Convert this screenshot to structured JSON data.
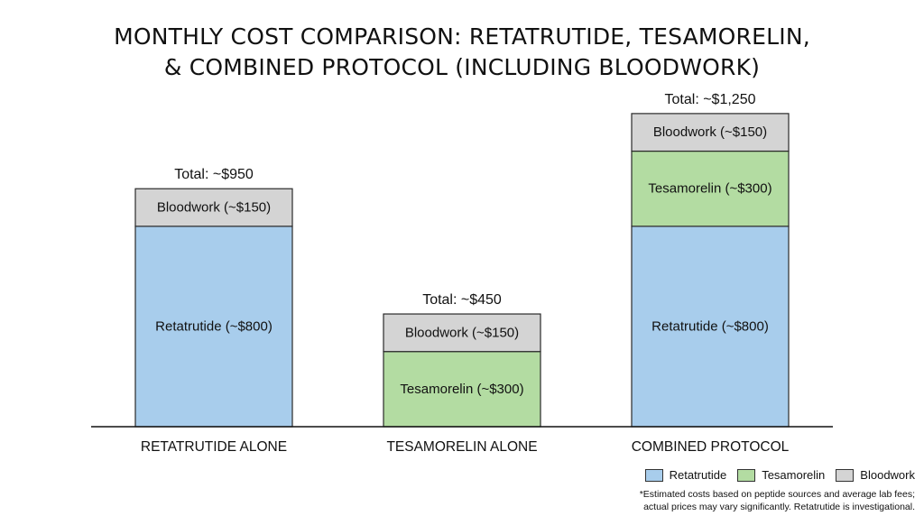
{
  "title_line1": "MONTHLY COST COMPARISON: RETATRUTIDE, TESAMORELIN,",
  "title_line2": "& COMBINED PROTOCOL (INCLUDING BLOODWORK)",
  "chart_data": {
    "type": "bar",
    "stacked": true,
    "categories": [
      "RETATRUTIDE ALONE",
      "TESAMORELIN ALONE",
      "COMBINED PROTOCOL"
    ],
    "series": [
      {
        "name": "Retatrutide",
        "color": "#a8cdec",
        "values": [
          800,
          0,
          800
        ],
        "labels": [
          "Retatrutide (~$800)",
          "",
          "Retatrutide (~$800)"
        ]
      },
      {
        "name": "Tesamorelin",
        "color": "#b3dca2",
        "values": [
          0,
          300,
          300
        ],
        "labels": [
          "",
          "Tesamorelin (~$300)",
          "Tesamorelin (~$300)"
        ]
      },
      {
        "name": "Bloodwork",
        "color": "#d4d4d4",
        "values": [
          150,
          150,
          150
        ],
        "labels": [
          "Bloodwork (~$150)",
          "Bloodwork (~$150)",
          "Bloodwork (~$150)"
        ]
      }
    ],
    "totals": [
      "Total: ~$950",
      "Total: ~$450",
      "Total: ~$1,250"
    ],
    "ylim": [
      0,
      1300
    ],
    "grid": false,
    "legend_position": "bottom-right"
  },
  "footnote_line1": "*Estimated costs based on peptide sources and average lab fees;",
  "footnote_line2": "actual prices may vary significantly. Retatrutide is investigational."
}
